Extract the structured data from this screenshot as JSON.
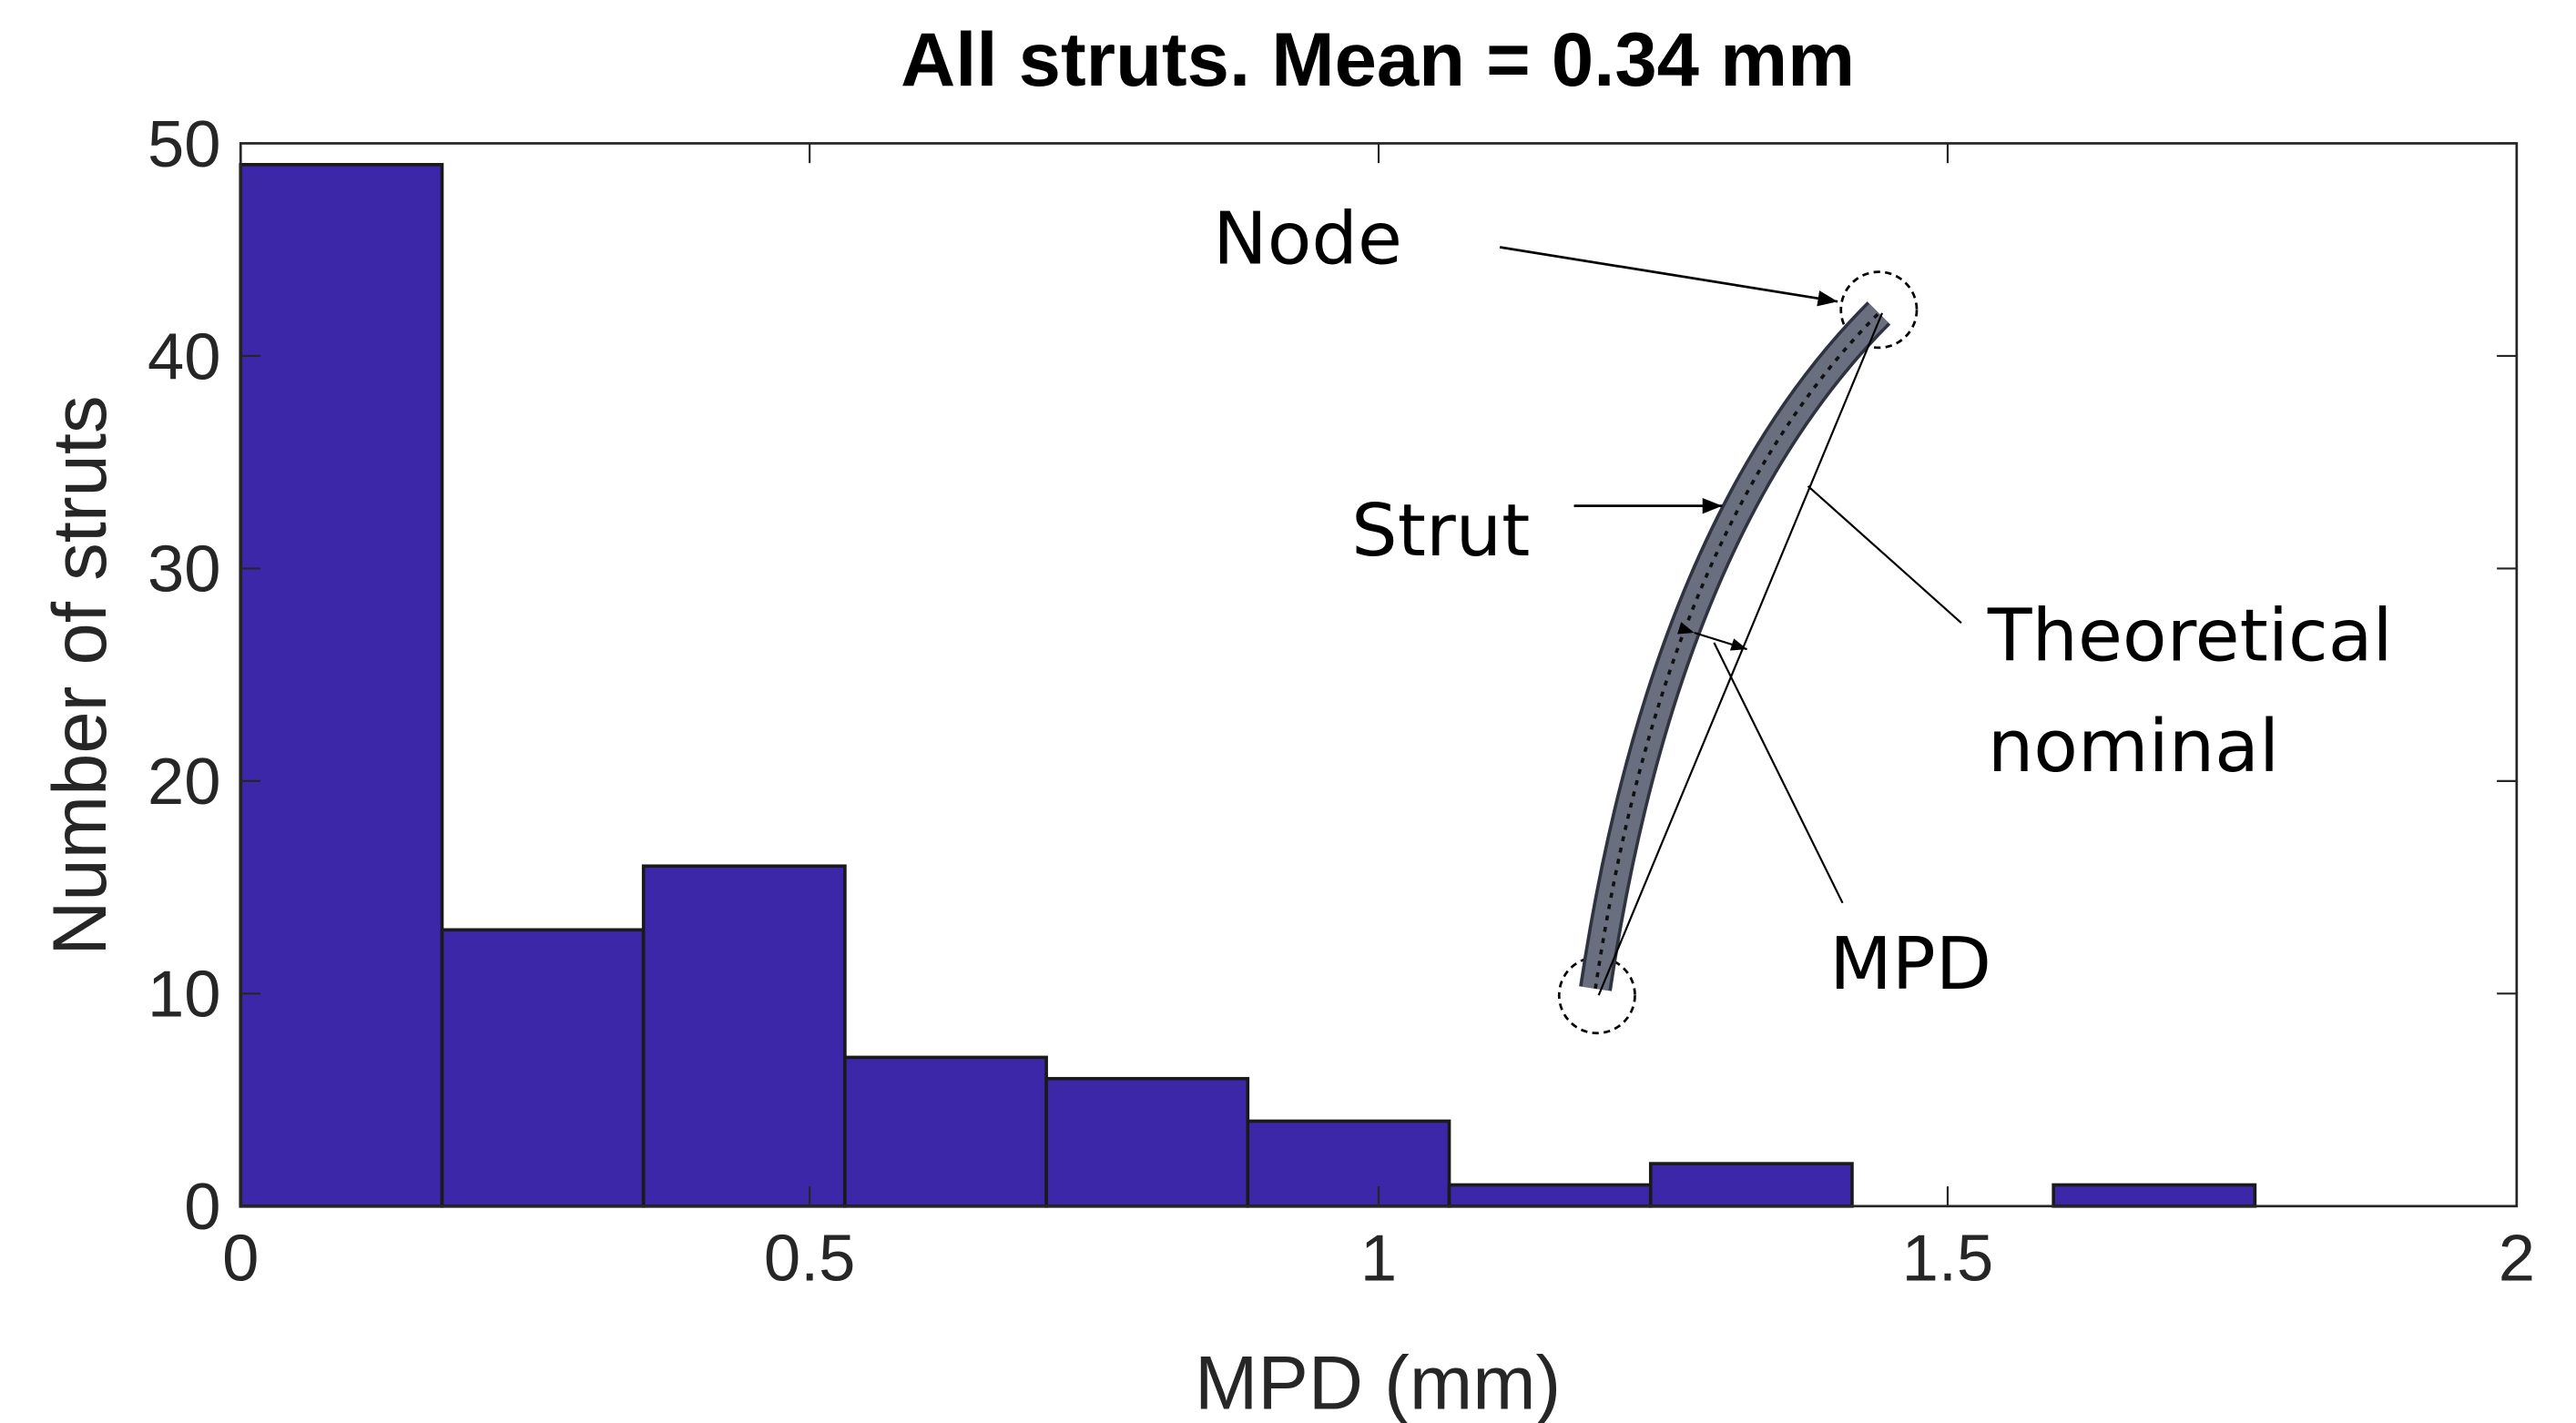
{
  "chart_data": {
    "type": "histogram",
    "title": "All struts. Mean = 0.34 mm",
    "x_label": "MPD (mm)",
    "y_label": "Number of struts",
    "bins": [
      0,
      0.177,
      0.354,
      0.531,
      0.708,
      0.885,
      1.062,
      1.239,
      1.416,
      1.593,
      1.77
    ],
    "values": [
      49,
      13,
      16,
      7,
      6,
      4,
      1,
      2,
      0,
      1
    ],
    "color": "#3b27a8",
    "xlim": [
      0,
      2
    ],
    "xticks": [
      0,
      0.5,
      1,
      1.5,
      2
    ],
    "ylim": [
      0,
      50
    ],
    "yticks": [
      0,
      10,
      20,
      30,
      40,
      50
    ],
    "annotations": [
      "Node",
      "Strut",
      "Theoretical",
      "nominal",
      "MPD"
    ]
  }
}
